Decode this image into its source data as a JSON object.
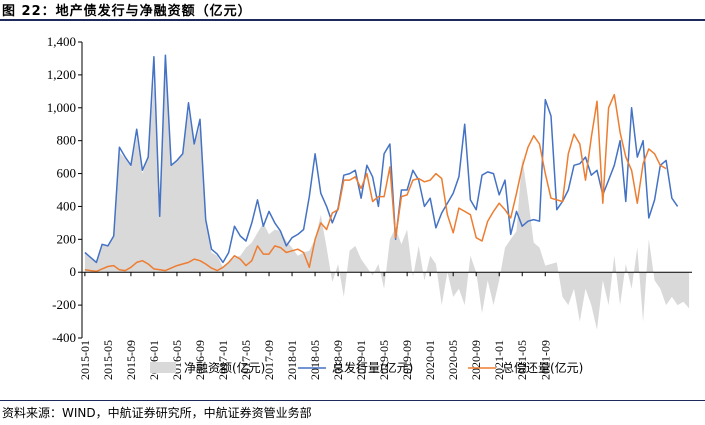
{
  "header": {
    "title": "图 22：地产债发行与净融资额（亿元）"
  },
  "footer": {
    "source": "资料来源：WIND，中航证券研究所，中航证券资管业务部"
  },
  "colors": {
    "net": "#d9d9d9",
    "issuance": "#4472c4",
    "repayment": "#ed7d31",
    "rule": "#1f2a5c"
  },
  "chart_data": {
    "type": "line",
    "title": "",
    "xlabel": "",
    "ylabel": "",
    "ylim": [
      -400,
      1400
    ],
    "yticks": [
      "1,400",
      "1,200",
      "1,000",
      "800",
      "600",
      "400",
      "200",
      "0",
      "-200",
      "-400"
    ],
    "ytick_values": [
      1400,
      1200,
      1000,
      800,
      600,
      400,
      200,
      0,
      -200,
      -400
    ],
    "xtick_labels": [
      "2015-01",
      "2015-05",
      "2015-09",
      "2016-01",
      "2016-05",
      "2016-09",
      "2017-01",
      "2017-05",
      "2017-09",
      "2018-01",
      "2018-05",
      "2018-09",
      "2019-01",
      "2019-05",
      "2019-09",
      "2020-01",
      "2020-05",
      "2020-09",
      "2021-01",
      "2021-05",
      "2021-09"
    ],
    "x_start": "2015-01",
    "x_end": "2021-09",
    "legend_position": "bottom",
    "grid": false,
    "series": [
      {
        "name": "净融资额(亿元)",
        "kind": "area",
        "values": [
          115,
          90,
          60,
          170,
          160,
          220,
          730,
          690,
          640,
          820,
          600,
          700,
          1160,
          340,
          1290,
          650,
          680,
          720,
          980,
          770,
          890,
          300,
          120,
          100,
          30,
          60,
          90,
          100,
          150,
          180,
          240,
          300,
          230,
          260,
          250,
          190,
          150,
          100,
          120,
          130,
          200,
          350,
          150,
          -60,
          50,
          -150,
          130,
          160,
          80,
          30,
          -20,
          50,
          -100,
          200,
          270,
          170,
          260,
          -30,
          160,
          -50,
          100,
          50,
          -200,
          0,
          -150,
          -100,
          -200,
          100,
          0,
          -250,
          -50,
          -200,
          -50,
          150,
          200,
          250,
          700,
          450,
          180,
          150,
          40,
          50,
          60,
          -150,
          -200,
          -100,
          -300,
          -100,
          -200,
          -350,
          -50,
          -200,
          100,
          -200,
          50,
          -100,
          150,
          -300,
          200,
          -50,
          -100,
          -200,
          -150,
          -200,
          -180,
          -220
        ]
      },
      {
        "name": "总发行量(亿元)",
        "kind": "line",
        "values": [
          120,
          90,
          60,
          170,
          160,
          220,
          760,
          700,
          650,
          870,
          620,
          700,
          1310,
          340,
          1320,
          650,
          680,
          720,
          1030,
          780,
          930,
          320,
          140,
          110,
          60,
          120,
          280,
          220,
          190,
          300,
          440,
          280,
          370,
          300,
          250,
          160,
          210,
          230,
          260,
          460,
          720,
          480,
          400,
          300,
          390,
          590,
          600,
          620,
          450,
          650,
          580,
          400,
          720,
          780,
          200,
          500,
          500,
          620,
          560,
          400,
          450,
          270,
          360,
          420,
          480,
          580,
          900,
          440,
          380,
          590,
          610,
          600,
          470,
          560,
          230,
          370,
          280,
          310,
          320,
          310,
          1050,
          950,
          380,
          430,
          500,
          650,
          660,
          700,
          590,
          620,
          470,
          560,
          650,
          800,
          430,
          1000,
          700,
          800,
          330,
          440,
          650,
          680,
          450,
          400
        ]
      },
      {
        "name": "总偿还量(亿元)",
        "kind": "line",
        "values": [
          15,
          10,
          5,
          20,
          35,
          40,
          15,
          10,
          30,
          60,
          70,
          50,
          20,
          15,
          10,
          25,
          40,
          50,
          60,
          80,
          70,
          50,
          25,
          10,
          30,
          60,
          100,
          80,
          40,
          70,
          160,
          110,
          110,
          160,
          150,
          120,
          130,
          140,
          120,
          30,
          200,
          300,
          260,
          360,
          380,
          560,
          560,
          580,
          510,
          600,
          430,
          460,
          460,
          640,
          210,
          460,
          470,
          560,
          570,
          550,
          560,
          600,
          570,
          350,
          240,
          390,
          370,
          350,
          210,
          190,
          310,
          370,
          420,
          380,
          330,
          480,
          640,
          760,
          830,
          780,
          600,
          450,
          440,
          430,
          720,
          840,
          780,
          560,
          820,
          1040,
          420,
          1000,
          1080,
          850,
          700,
          620,
          420,
          660,
          750,
          720,
          650,
          630
        ]
      }
    ]
  },
  "legend": [
    {
      "label": "净融资额(亿元)",
      "symbol": "area"
    },
    {
      "label": "总发行量(亿元)",
      "symbol": "blue-line"
    },
    {
      "label": "总偿还量(亿元)",
      "symbol": "orange-line"
    }
  ]
}
